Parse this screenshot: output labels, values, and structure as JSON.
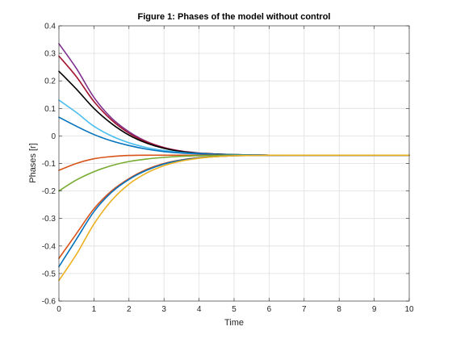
{
  "chart_data": {
    "type": "line",
    "title": "Figure 1: Phases of the model without control",
    "xlabel": "Time",
    "ylabel": "Phases [r]",
    "xlim": [
      0,
      10
    ],
    "ylim": [
      -0.6,
      0.4
    ],
    "xticks": [
      0,
      1,
      2,
      3,
      4,
      5,
      6,
      7,
      8,
      9,
      10
    ],
    "yticks": [
      -0.6,
      -0.5,
      -0.4,
      -0.3,
      -0.2,
      -0.1,
      0,
      0.1,
      0.2,
      0.3,
      0.4
    ],
    "grid": true,
    "legend": "none",
    "x": [
      0,
      0.5,
      1,
      1.5,
      2,
      2.5,
      3,
      3.5,
      4,
      4.5,
      5,
      5.5,
      6,
      6.5,
      7,
      7.5,
      8,
      8.5,
      9,
      9.5,
      10
    ],
    "series": [
      {
        "color": "#7E2F8E",
        "values": [
          0.335,
          0.245,
          0.14,
          0.065,
          0.015,
          -0.02,
          -0.042,
          -0.055,
          -0.062,
          -0.066,
          -0.068,
          -0.069,
          -0.07,
          -0.07,
          -0.07,
          -0.07,
          -0.07,
          -0.07,
          -0.07,
          -0.07,
          -0.07
        ]
      },
      {
        "color": "#A2142F",
        "values": [
          0.29,
          0.215,
          0.125,
          0.058,
          0.01,
          -0.022,
          -0.043,
          -0.056,
          -0.063,
          -0.066,
          -0.068,
          -0.069,
          -0.07,
          -0.07,
          -0.07,
          -0.07,
          -0.07,
          -0.07,
          -0.07,
          -0.07,
          -0.07
        ]
      },
      {
        "color": "#000000",
        "values": [
          0.235,
          0.17,
          0.1,
          0.045,
          0.003,
          -0.026,
          -0.045,
          -0.057,
          -0.063,
          -0.066,
          -0.068,
          -0.069,
          -0.07,
          -0.07,
          -0.07,
          -0.07,
          -0.07,
          -0.07,
          -0.07,
          -0.07,
          -0.07
        ]
      },
      {
        "color": "#4DBEEE",
        "values": [
          0.13,
          0.085,
          0.035,
          0.0,
          -0.025,
          -0.042,
          -0.053,
          -0.06,
          -0.064,
          -0.067,
          -0.068,
          -0.069,
          -0.07,
          -0.07,
          -0.07,
          -0.07,
          -0.07,
          -0.07,
          -0.07,
          -0.07,
          -0.07
        ]
      },
      {
        "color": "#0072BD",
        "values": [
          0.068,
          0.035,
          0.005,
          -0.018,
          -0.035,
          -0.048,
          -0.057,
          -0.062,
          -0.065,
          -0.067,
          -0.069,
          -0.069,
          -0.07,
          -0.07,
          -0.07,
          -0.07,
          -0.07,
          -0.07,
          -0.07,
          -0.07,
          -0.07
        ]
      },
      {
        "color": "#D95319",
        "values": [
          -0.125,
          -0.1,
          -0.083,
          -0.075,
          -0.071,
          -0.07,
          -0.07,
          -0.07,
          -0.07,
          -0.07,
          -0.07,
          -0.07,
          -0.07,
          -0.07,
          -0.07,
          -0.07,
          -0.07,
          -0.07,
          -0.07,
          -0.07,
          -0.07
        ]
      },
      {
        "color": "#77AC30",
        "values": [
          -0.2,
          -0.16,
          -0.13,
          -0.108,
          -0.093,
          -0.084,
          -0.078,
          -0.074,
          -0.072,
          -0.071,
          -0.07,
          -0.07,
          -0.07,
          -0.07,
          -0.07,
          -0.07,
          -0.07,
          -0.07,
          -0.07,
          -0.07,
          -0.07
        ]
      },
      {
        "color": "#D95319",
        "values": [
          -0.445,
          -0.355,
          -0.265,
          -0.2,
          -0.155,
          -0.122,
          -0.1,
          -0.087,
          -0.079,
          -0.075,
          -0.072,
          -0.071,
          -0.07,
          -0.07,
          -0.07,
          -0.07,
          -0.07,
          -0.07,
          -0.07,
          -0.07,
          -0.07
        ]
      },
      {
        "color": "#0072BD",
        "values": [
          -0.475,
          -0.375,
          -0.275,
          -0.205,
          -0.158,
          -0.125,
          -0.102,
          -0.088,
          -0.08,
          -0.075,
          -0.072,
          -0.071,
          -0.07,
          -0.07,
          -0.07,
          -0.07,
          -0.07,
          -0.07,
          -0.07,
          -0.07,
          -0.07
        ]
      },
      {
        "color": "#EDB120",
        "values": [
          -0.525,
          -0.43,
          -0.32,
          -0.235,
          -0.175,
          -0.135,
          -0.108,
          -0.091,
          -0.081,
          -0.075,
          -0.072,
          -0.071,
          -0.07,
          -0.07,
          -0.07,
          -0.07,
          -0.07,
          -0.07,
          -0.07,
          -0.07,
          -0.07
        ]
      }
    ]
  }
}
